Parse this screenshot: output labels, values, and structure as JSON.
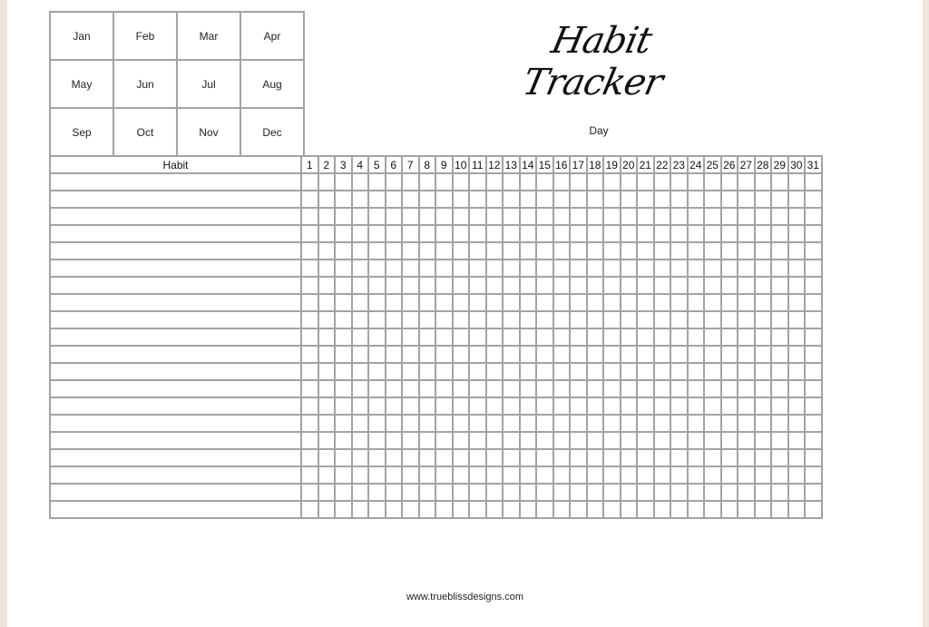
{
  "title": "Habit Tracker",
  "months": [
    [
      "Jan",
      "Feb",
      "Mar",
      "Apr"
    ],
    [
      "May",
      "Jun",
      "Jul",
      "Aug"
    ],
    [
      "Sep",
      "Oct",
      "Nov",
      "Dec"
    ]
  ],
  "day_label": "Day",
  "habit_header": "Habit",
  "days": [
    "1",
    "2",
    "3",
    "4",
    "5",
    "6",
    "7",
    "8",
    "9",
    "10",
    "11",
    "12",
    "13",
    "14",
    "15",
    "16",
    "17",
    "18",
    "19",
    "20",
    "21",
    "22",
    "23",
    "24",
    "25",
    "26",
    "27",
    "28",
    "29",
    "30",
    "31"
  ],
  "habit_rows": 20,
  "footer": "www.trueblissdesigns.com",
  "colors": {
    "grid": "#a3a3a3",
    "background": "#ece6df"
  }
}
